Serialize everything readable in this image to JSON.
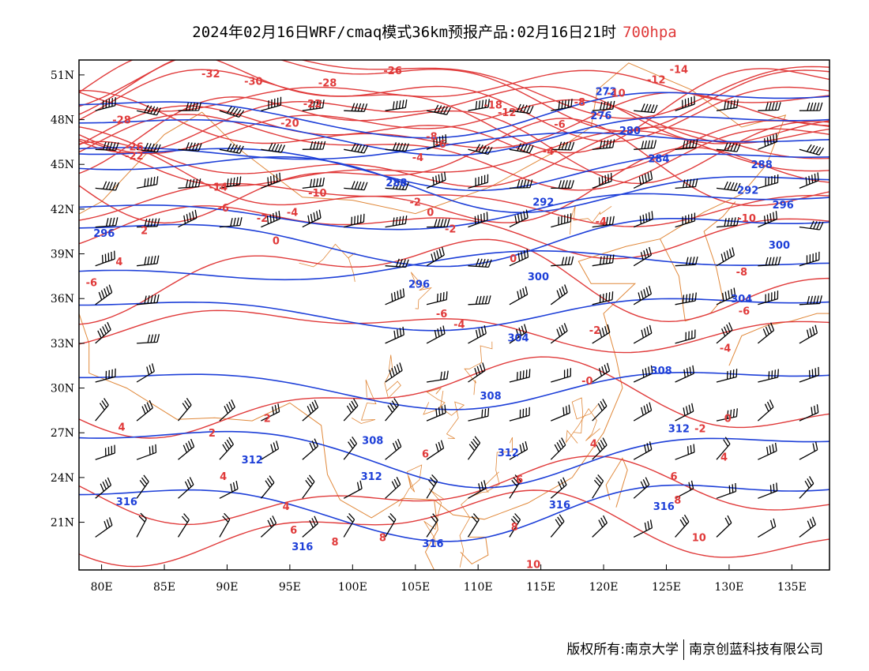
{
  "title": {
    "main": "2024年02月16日WRF/cmaq模式36km预报产品:02月16日21时",
    "level": "700hpa"
  },
  "footer": {
    "copyright": "版权所有:南京大学",
    "company": "南京创蓝科技有限公司"
  },
  "colors": {
    "temperature": "#e03a3a",
    "height": "#1d3fd8",
    "boundary": "#e0883a",
    "wind": "#000000"
  },
  "axes": {
    "lat_labels": [
      "51N",
      "48N",
      "45N",
      "42N",
      "39N",
      "36N",
      "33N",
      "30N",
      "27N",
      "24N",
      "21N"
    ],
    "lon_labels": [
      "80E",
      "85E",
      "90E",
      "95E",
      "100E",
      "105E",
      "110E",
      "115E",
      "120E",
      "125E",
      "130E",
      "135E"
    ]
  },
  "height_contours": [
    {
      "value": 272,
      "lat": 49.0
    },
    {
      "value": 276,
      "lat": 47.6
    },
    {
      "value": 280,
      "lat": 46.4
    },
    {
      "value": 284,
      "lat": 45.3
    },
    {
      "value": 288,
      "lat": 44.2
    },
    {
      "value": 292,
      "lat": 42.3
    },
    {
      "value": 296,
      "lat": 40.6
    },
    {
      "value": 300,
      "lat": 38.2
    },
    {
      "value": 304,
      "lat": 35.4
    },
    {
      "value": 308,
      "lat": 30.5
    },
    {
      "value": 312,
      "lat": 26.2
    },
    {
      "value": 316,
      "lat": 22.6
    }
  ],
  "temperature_contours": [
    {
      "value": -32,
      "lat": 51.0
    },
    {
      "value": -30,
      "lat": 50.5
    },
    {
      "value": -28,
      "lat": 50.2
    },
    {
      "value": -26,
      "lat": 49.6
    },
    {
      "value": -24,
      "lat": 49.1
    },
    {
      "value": -22,
      "lat": 48.6
    },
    {
      "value": -20,
      "lat": 48.1
    },
    {
      "value": -18,
      "lat": 47.6
    },
    {
      "value": -16,
      "lat": 47.2
    },
    {
      "value": -14,
      "lat": 46.7
    },
    {
      "value": -12,
      "lat": 46.2
    },
    {
      "value": -10,
      "lat": 45.7
    },
    {
      "value": -8,
      "lat": 45.0
    },
    {
      "value": -6,
      "lat": 44.3
    },
    {
      "value": -4,
      "lat": 43.5
    },
    {
      "value": -2,
      "lat": 42.6
    },
    {
      "value": 0,
      "lat": 40.6
    },
    {
      "value": 2,
      "lat": 37.2
    },
    {
      "value": 4,
      "lat": 34.0
    },
    {
      "value": 6,
      "lat": 29.0
    },
    {
      "value": 8,
      "lat": 23.0
    },
    {
      "value": 10,
      "lat": 20.5
    }
  ],
  "height_labels": [
    {
      "text": "272",
      "lon": 120.2,
      "lat": 49.9
    },
    {
      "text": "276",
      "lon": 119.8,
      "lat": 48.3
    },
    {
      "text": "280",
      "lon": 122.1,
      "lat": 47.3
    },
    {
      "text": "284",
      "lon": 124.4,
      "lat": 45.4
    },
    {
      "text": "288",
      "lon": 132.6,
      "lat": 45.0
    },
    {
      "text": "288",
      "lon": 103.5,
      "lat": 43.8
    },
    {
      "text": "292",
      "lon": 115.2,
      "lat": 42.5
    },
    {
      "text": "292",
      "lon": 131.5,
      "lat": 43.3
    },
    {
      "text": "296",
      "lon": 134.3,
      "lat": 42.3
    },
    {
      "text": "296",
      "lon": 105.3,
      "lat": 37.0
    },
    {
      "text": "296",
      "lon": 80.2,
      "lat": 40.4
    },
    {
      "text": "300",
      "lon": 114.8,
      "lat": 37.5
    },
    {
      "text": "300",
      "lon": 134.0,
      "lat": 39.6
    },
    {
      "text": "304",
      "lon": 113.2,
      "lat": 33.4
    },
    {
      "text": "304",
      "lon": 131.0,
      "lat": 36.0
    },
    {
      "text": "308",
      "lon": 124.6,
      "lat": 31.2
    },
    {
      "text": "308",
      "lon": 111.0,
      "lat": 29.5
    },
    {
      "text": "308",
      "lon": 101.6,
      "lat": 26.5
    },
    {
      "text": "312",
      "lon": 92.0,
      "lat": 25.2
    },
    {
      "text": "312",
      "lon": 112.4,
      "lat": 25.7
    },
    {
      "text": "312",
      "lon": 126.0,
      "lat": 27.3
    },
    {
      "text": "312",
      "lon": 101.5,
      "lat": 24.1
    },
    {
      "text": "316",
      "lon": 82.0,
      "lat": 22.4
    },
    {
      "text": "316",
      "lon": 116.5,
      "lat": 22.2
    },
    {
      "text": "316",
      "lon": 124.8,
      "lat": 22.1
    },
    {
      "text": "316",
      "lon": 96.0,
      "lat": 19.4
    },
    {
      "text": "316",
      "lon": 106.4,
      "lat": 19.6
    }
  ],
  "temperature_labels": [
    {
      "text": "-32",
      "lon": 88.7,
      "lat": 51.1
    },
    {
      "text": "-30",
      "lon": 92.1,
      "lat": 50.6
    },
    {
      "text": "-28",
      "lon": 98.0,
      "lat": 50.5
    },
    {
      "text": "-26",
      "lon": 103.2,
      "lat": 51.3
    },
    {
      "text": "-28",
      "lon": 81.6,
      "lat": 48.0
    },
    {
      "text": "-26",
      "lon": 82.6,
      "lat": 46.2
    },
    {
      "text": "-22",
      "lon": 82.6,
      "lat": 45.6
    },
    {
      "text": "-22",
      "lon": 96.8,
      "lat": 49.1
    },
    {
      "text": "-20",
      "lon": 95.0,
      "lat": 47.8
    },
    {
      "text": "-18",
      "lon": 111.2,
      "lat": 49.0
    },
    {
      "text": "-14",
      "lon": 126.0,
      "lat": 51.4
    },
    {
      "text": "-12",
      "lon": 124.2,
      "lat": 50.7
    },
    {
      "text": "-10",
      "lon": 121.0,
      "lat": 49.8
    },
    {
      "text": "-8",
      "lon": 118.1,
      "lat": 49.2
    },
    {
      "text": "-12",
      "lon": 112.3,
      "lat": 48.5
    },
    {
      "text": "-6",
      "lon": 116.5,
      "lat": 47.7
    },
    {
      "text": "-4",
      "lon": 115.6,
      "lat": 45.9
    },
    {
      "text": "-8",
      "lon": 106.3,
      "lat": 46.9
    },
    {
      "text": "-6",
      "lon": 107.0,
      "lat": 46.4
    },
    {
      "text": "-4",
      "lon": 105.2,
      "lat": 45.5
    },
    {
      "text": "-2",
      "lon": 105.0,
      "lat": 42.5
    },
    {
      "text": "0",
      "lon": 106.2,
      "lat": 41.8
    },
    {
      "text": "-14",
      "lon": 89.3,
      "lat": 43.5
    },
    {
      "text": "-10",
      "lon": 97.2,
      "lat": 43.1
    },
    {
      "text": "-6",
      "lon": 89.7,
      "lat": 42.1
    },
    {
      "text": "-4",
      "lon": 95.2,
      "lat": 41.8
    },
    {
      "text": "-2",
      "lon": 92.8,
      "lat": 41.4
    },
    {
      "text": "2",
      "lon": 83.4,
      "lat": 40.6
    },
    {
      "text": "0",
      "lon": 93.9,
      "lat": 39.9
    },
    {
      "text": "-2",
      "lon": 107.8,
      "lat": 40.7
    },
    {
      "text": "4",
      "lon": 81.4,
      "lat": 38.5
    },
    {
      "text": "-6",
      "lon": 79.2,
      "lat": 37.1
    },
    {
      "text": "-4",
      "lon": 119.8,
      "lat": 41.2
    },
    {
      "text": "0",
      "lon": 112.8,
      "lat": 38.7
    },
    {
      "text": "-10",
      "lon": 131.4,
      "lat": 41.4
    },
    {
      "text": "-8",
      "lon": 131.0,
      "lat": 37.8
    },
    {
      "text": "-6",
      "lon": 131.2,
      "lat": 35.2
    },
    {
      "text": "-4",
      "lon": 129.7,
      "lat": 32.7
    },
    {
      "text": "-6",
      "lon": 107.1,
      "lat": 35.0
    },
    {
      "text": "-4",
      "lon": 108.5,
      "lat": 34.3
    },
    {
      "text": "-2",
      "lon": 119.3,
      "lat": 33.9
    },
    {
      "text": "-0",
      "lon": 118.7,
      "lat": 30.5
    },
    {
      "text": "0",
      "lon": 129.9,
      "lat": 28.0
    },
    {
      "text": "-2",
      "lon": 127.7,
      "lat": 27.3
    },
    {
      "text": "2",
      "lon": 93.2,
      "lat": 28.0
    },
    {
      "text": "2",
      "lon": 88.8,
      "lat": 27.0
    },
    {
      "text": "4",
      "lon": 81.6,
      "lat": 27.4
    },
    {
      "text": "4",
      "lon": 89.7,
      "lat": 24.1
    },
    {
      "text": "4",
      "lon": 119.2,
      "lat": 26.3
    },
    {
      "text": "4",
      "lon": 129.6,
      "lat": 25.4
    },
    {
      "text": "6",
      "lon": 105.8,
      "lat": 25.6
    },
    {
      "text": "6",
      "lon": 113.3,
      "lat": 23.9
    },
    {
      "text": "6",
      "lon": 125.6,
      "lat": 24.1
    },
    {
      "text": "4",
      "lon": 94.7,
      "lat": 22.1
    },
    {
      "text": "6",
      "lon": 95.3,
      "lat": 20.5
    },
    {
      "text": "8",
      "lon": 125.9,
      "lat": 22.5
    },
    {
      "text": "8",
      "lon": 112.9,
      "lat": 20.7
    },
    {
      "text": "8",
      "lon": 98.6,
      "lat": 19.7
    },
    {
      "text": "8",
      "lon": 102.4,
      "lat": 20.0
    },
    {
      "text": "10",
      "lon": 127.6,
      "lat": 20.0
    },
    {
      "text": "10",
      "lon": 114.4,
      "lat": 18.2
    }
  ]
}
